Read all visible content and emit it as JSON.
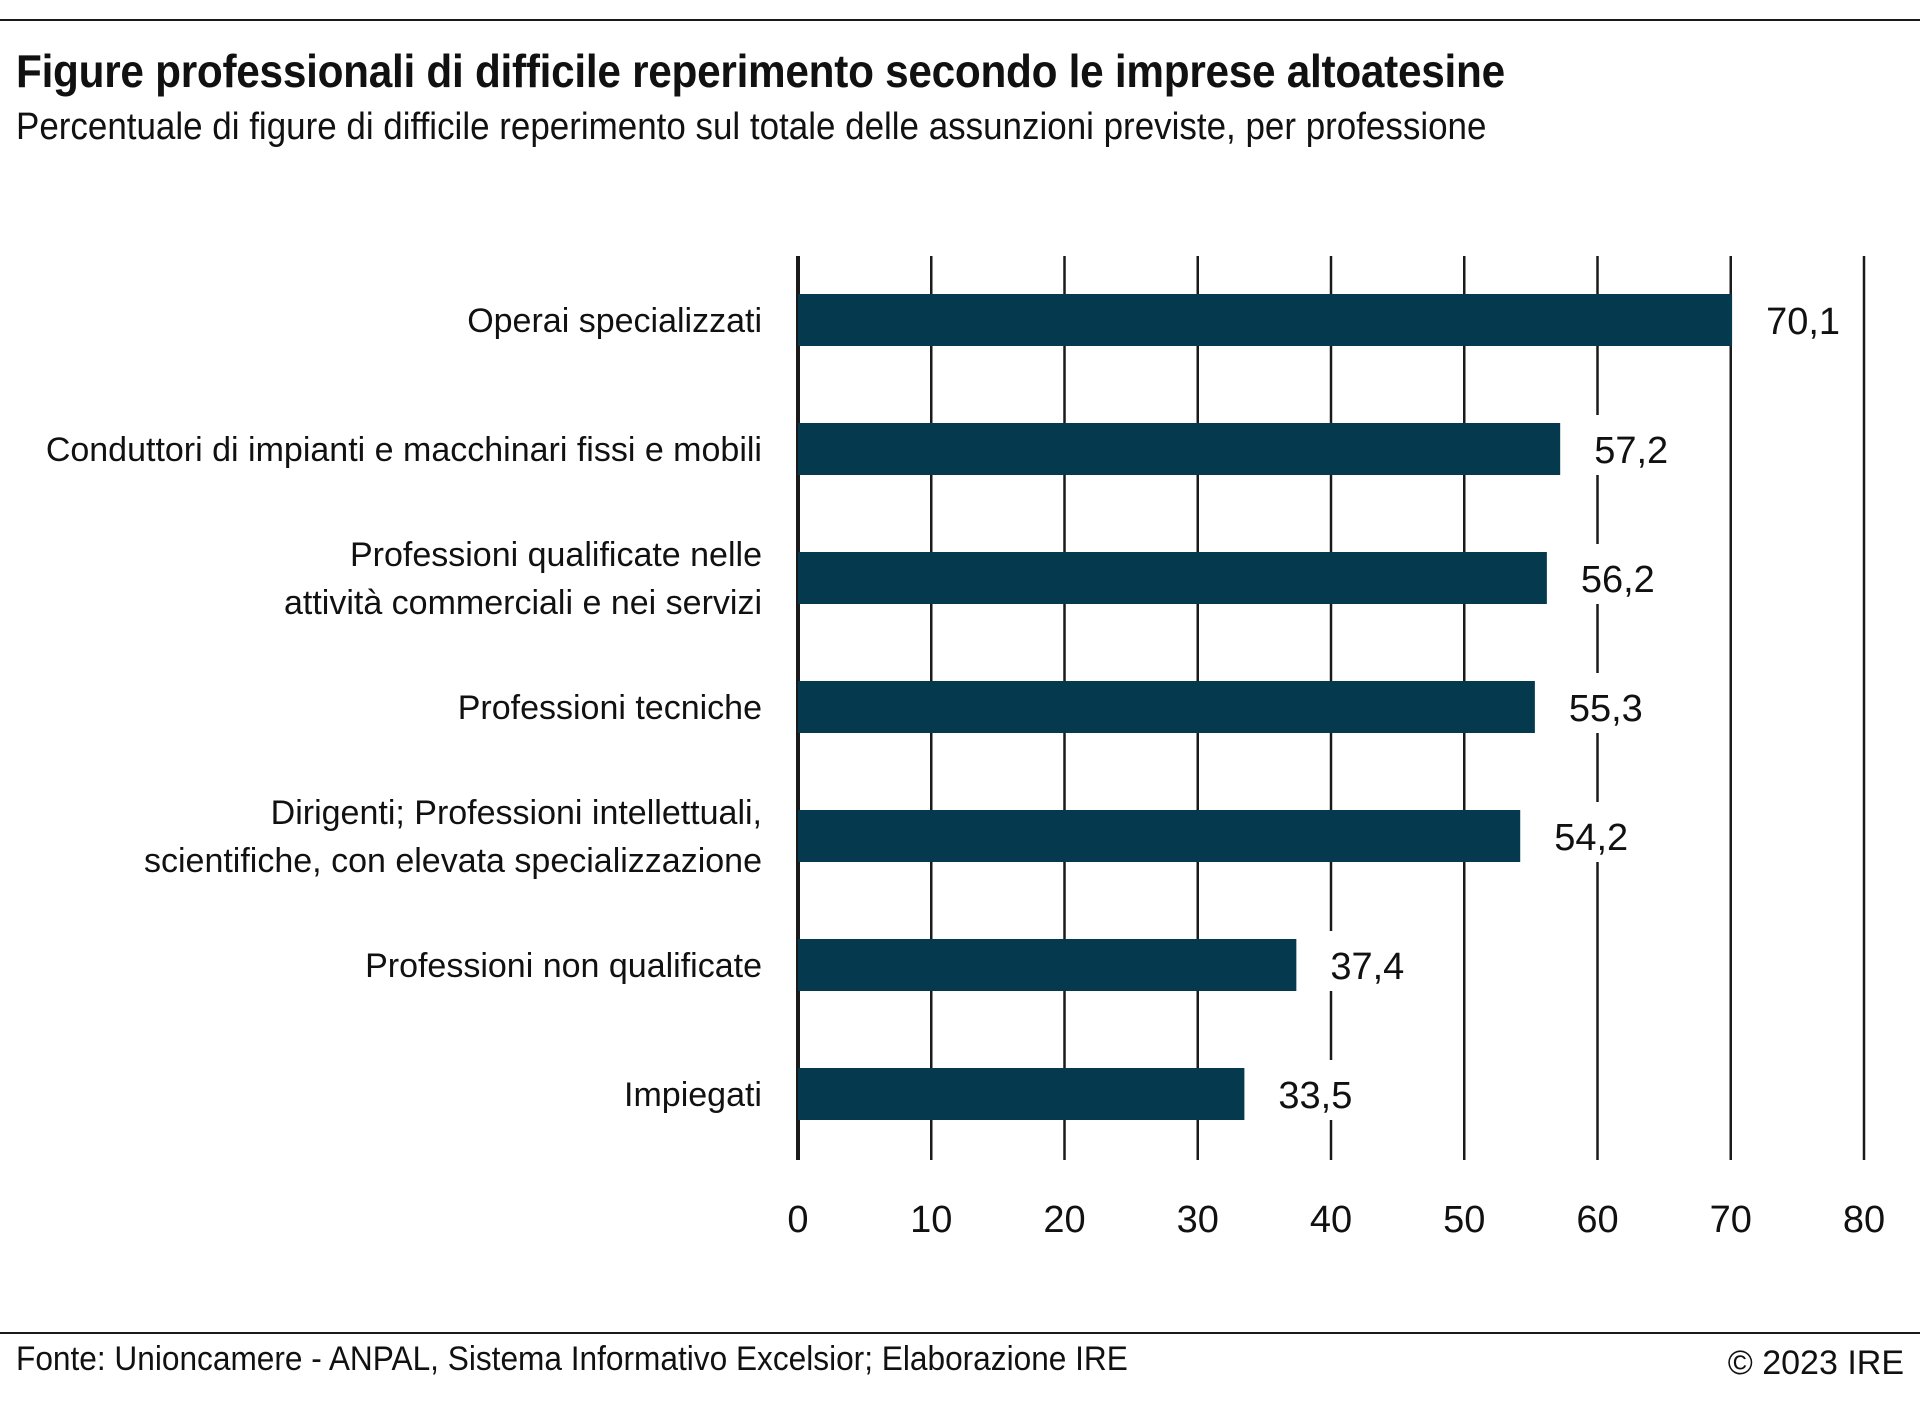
{
  "title": "Figure professionali di difficile reperimento secondo le imprese altoatesine",
  "subtitle": "Percentuale di figure di difficile reperimento sul totale delle assunzioni previste, per professione",
  "footer": {
    "source": "Fonte: Unioncamere - ANPAL, Sistema Informativo Excelsior; Elaborazione IRE",
    "copyright": "© 2023 IRE"
  },
  "colors": {
    "bar": "#053a4e",
    "grid": "#1a1a1a",
    "text": "#111111"
  },
  "chart_data": {
    "type": "bar",
    "orientation": "horizontal",
    "title": "Figure professionali di difficile reperimento secondo le imprese altoatesine",
    "subtitle": "Percentuale di figure di difficile reperimento sul totale delle assunzioni previste, per professione",
    "xlabel": "",
    "ylabel": "",
    "xlim": [
      0,
      80
    ],
    "xticks": [
      0,
      10,
      20,
      30,
      40,
      50,
      60,
      70,
      80
    ],
    "grid": "vertical",
    "categories": [
      [
        "Operai specializzati"
      ],
      [
        "Conduttori di impianti e macchinari fissi e mobili"
      ],
      [
        "Professioni qualificate nelle",
        "attività commerciali e nei servizi"
      ],
      [
        "Professioni tecniche"
      ],
      [
        "Dirigenti; Professioni intellettuali,",
        "scientifiche, con elevata specializzazione"
      ],
      [
        "Professioni non qualificate"
      ],
      [
        "Impiegati"
      ]
    ],
    "values": [
      70.1,
      57.2,
      56.2,
      55.3,
      54.2,
      37.4,
      33.5
    ],
    "value_labels": [
      "70,1",
      "57,2",
      "56,2",
      "55,3",
      "54,2",
      "37,4",
      "33,5"
    ]
  }
}
